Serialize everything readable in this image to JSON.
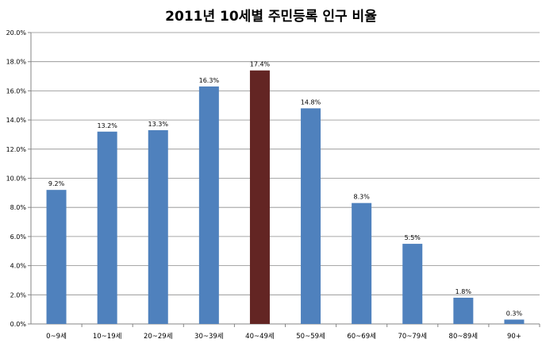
{
  "chart_data": {
    "type": "bar",
    "title": "2011년 10세별 주민등록 인구 비율",
    "categories": [
      "0~9세",
      "10~19세",
      "20~29세",
      "30~39세",
      "40~49세",
      "50~59세",
      "60~69세",
      "70~79세",
      "80~89세",
      "90+"
    ],
    "values": [
      9.2,
      13.2,
      13.3,
      16.3,
      17.4,
      14.8,
      8.3,
      5.5,
      1.8,
      0.3
    ],
    "data_labels": [
      "9.2%",
      "13.2%",
      "13.3%",
      "16.3%",
      "17.4%",
      "14.8%",
      "8.3%",
      "5.5%",
      "1.8%",
      "0.3%"
    ],
    "y_ticks": [
      "0.0%",
      "2.0%",
      "4.0%",
      "6.0%",
      "8.0%",
      "10.0%",
      "12.0%",
      "14.0%",
      "16.0%",
      "18.0%",
      "20.0%"
    ],
    "ylim": [
      0,
      20
    ],
    "grid": true,
    "legend": "none",
    "colors": {
      "bar": "#4f81bd",
      "highlight": "#632523",
      "grid": "#8c8c8c",
      "axis": "#868686"
    },
    "highlight_index": 4
  }
}
